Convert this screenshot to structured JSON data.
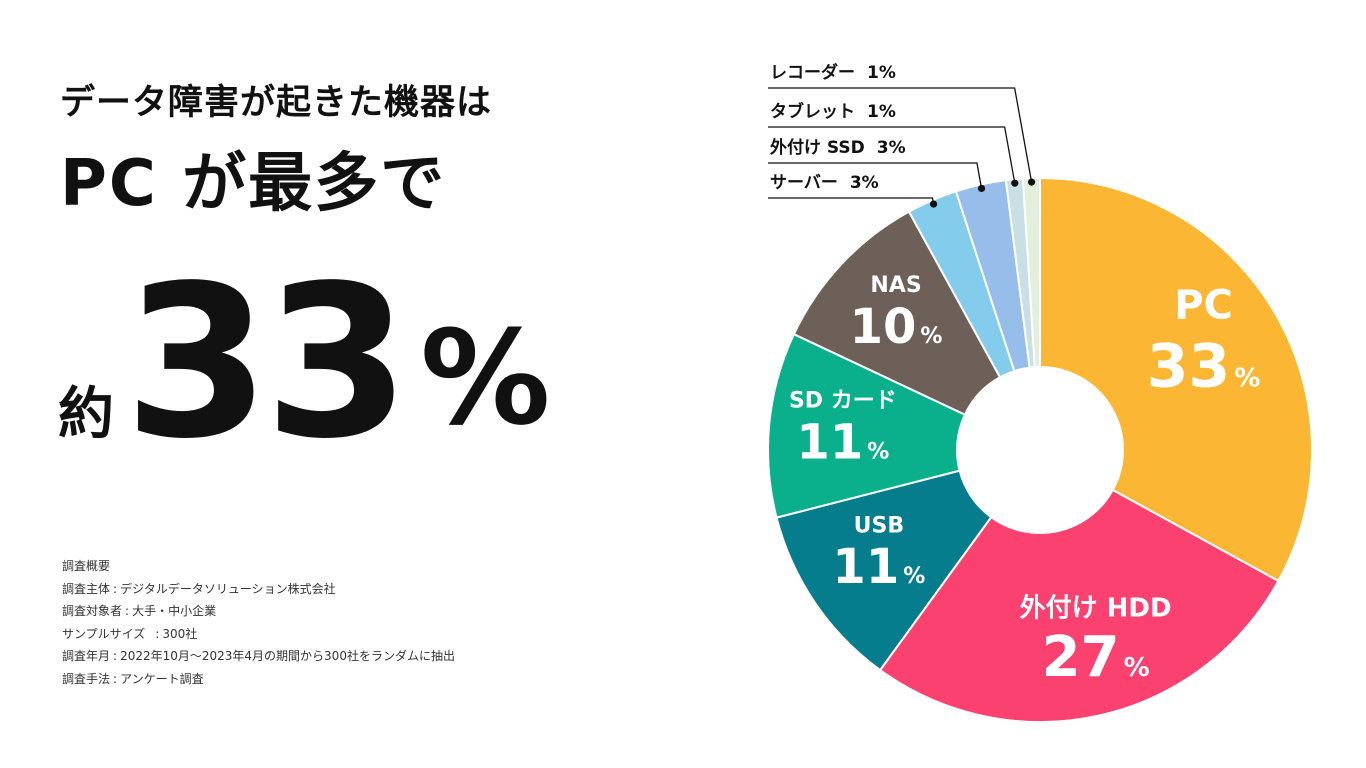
{
  "headline": {
    "line1": "データ障害が起きた機器は",
    "line2": "PC が最多で"
  },
  "highlight": {
    "prefix": "約",
    "value": "33",
    "unit": "%"
  },
  "survey": {
    "title": "調査概要",
    "rows": [
      {
        "label": "調査主体",
        "value": "デジタルデータソリューション株式会社"
      },
      {
        "label": "調査対象者",
        "value": "大手・中小企業"
      },
      {
        "label": "サンプルサイズ",
        "value": "300社"
      },
      {
        "label": "調査年月",
        "value": "2022年10月〜2023年4月の期間から300社をランダムに抽出"
      },
      {
        "label": "調査手法",
        "value": "アンケート調査"
      }
    ]
  },
  "chart_data": {
    "type": "pie",
    "variant": "donut",
    "start": "top",
    "direction": "clockwise",
    "slices": [
      {
        "name": "PC",
        "value": 33,
        "color": "#FBB733",
        "label_display": "inside"
      },
      {
        "name": "外付け HDD",
        "value": 27,
        "color": "#FB4170",
        "label_display": "inside"
      },
      {
        "name": "USB",
        "value": 11,
        "color": "#067D8C",
        "label_display": "inside"
      },
      {
        "name": "SD カード",
        "value": 11,
        "color": "#0AB08C",
        "label_display": "inside"
      },
      {
        "name": "NAS",
        "value": 10,
        "color": "#6D6059",
        "label_display": "inside"
      },
      {
        "name": "サーバー",
        "value": 3,
        "color": "#83CCEB",
        "label_display": "callout"
      },
      {
        "name": "外付け SSD",
        "value": 3,
        "color": "#97BDEB",
        "label_display": "callout"
      },
      {
        "name": "タブレット",
        "value": 1,
        "color": "#C8DFE5",
        "label_display": "callout"
      },
      {
        "name": "レコーダー",
        "value": 1,
        "color": "#E3EEDD",
        "label_display": "callout"
      }
    ],
    "value_suffix": "%"
  }
}
